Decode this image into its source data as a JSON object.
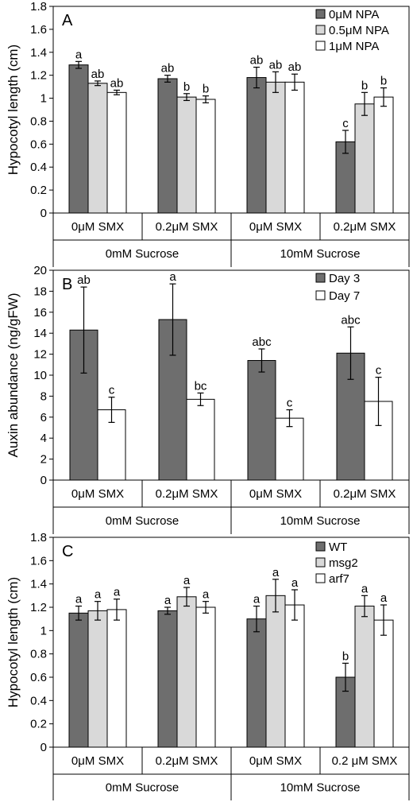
{
  "colors": {
    "dark": "#6e6e6e",
    "light": "#d9d9d9",
    "white": "#ffffff",
    "axis": "#000000"
  },
  "chart_data": [
    {
      "panel": "A",
      "type": "bar",
      "ylabel": "Hypocotyl length (cm)",
      "ylim": [
        0,
        1.8
      ],
      "yticks": [
        "0",
        "0.2",
        "0.4",
        "0.6",
        "0.8",
        "1",
        "1.2",
        "1.4",
        "1.6",
        "1.8"
      ],
      "tickStep": 0.2,
      "categories": [
        "0μM SMX",
        "0.2μM SMX",
        "0μM SMX",
        "0.2μM SMX"
      ],
      "groups": [
        "0mM Sucrose",
        "10mM Sucrose"
      ],
      "legend_position": "top-right",
      "series": [
        {
          "name": "0μM NPA",
          "color": "dark",
          "values": [
            1.29,
            1.17,
            1.18,
            0.62
          ],
          "errors": [
            0.03,
            0.03,
            0.09,
            0.1
          ],
          "letters": [
            "a",
            "ab",
            "ab",
            "c"
          ]
        },
        {
          "name": "0.5μM NPA",
          "color": "light",
          "values": [
            1.13,
            1.01,
            1.14,
            0.95
          ],
          "errors": [
            0.02,
            0.03,
            0.09,
            0.1
          ],
          "letters": [
            "ab",
            "b",
            "ab",
            "b"
          ]
        },
        {
          "name": "1μM NPA",
          "color": "white",
          "values": [
            1.05,
            0.99,
            1.14,
            1.01
          ],
          "errors": [
            0.02,
            0.03,
            0.07,
            0.08
          ],
          "letters": [
            "ab",
            "b",
            "ab",
            "b"
          ]
        }
      ]
    },
    {
      "panel": "B",
      "type": "bar",
      "ylabel": "Auxin abundance (ng/gFW)",
      "ylim": [
        0,
        20
      ],
      "yticks": [
        "0",
        "2",
        "4",
        "6",
        "8",
        "10",
        "12",
        "14",
        "16",
        "18",
        "20"
      ],
      "tickStep": 2,
      "categories": [
        "0μM SMX",
        "0.2μM SMX",
        "0μM SMX",
        "0.2μM SMX"
      ],
      "groups": [
        "0mM Sucrose",
        "10mM Sucrose"
      ],
      "legend_position": "top-right",
      "series": [
        {
          "name": "Day 3",
          "color": "dark",
          "values": [
            14.3,
            15.3,
            11.4,
            12.1
          ],
          "errors": [
            4.1,
            3.4,
            1.1,
            2.5
          ],
          "letters": [
            "ab",
            "a",
            "abc",
            "abc"
          ]
        },
        {
          "name": "Day 7",
          "color": "white",
          "values": [
            6.7,
            7.7,
            5.9,
            7.5
          ],
          "errors": [
            1.2,
            0.6,
            0.8,
            2.3
          ],
          "letters": [
            "c",
            "bc",
            "c",
            "c"
          ]
        }
      ]
    },
    {
      "panel": "C",
      "type": "bar",
      "ylabel": "Hypocotyl length (cm)",
      "ylim": [
        0,
        1.8
      ],
      "yticks": [
        "0",
        "0.2",
        "0.4",
        "0.6",
        "0.8",
        "1",
        "1.2",
        "1.4",
        "1.6",
        "1.8"
      ],
      "tickStep": 0.2,
      "categories": [
        "0μM SMX",
        "0.2μM SMX",
        "0μM SMX",
        "0.2 μM SMX"
      ],
      "groups": [
        "0mM Sucrose",
        "10mM Sucrose"
      ],
      "legend_position": "top-right",
      "series": [
        {
          "name": "WT",
          "color": "dark",
          "values": [
            1.15,
            1.17,
            1.1,
            0.6
          ],
          "errors": [
            0.06,
            0.03,
            0.11,
            0.12
          ],
          "letters": [
            "a",
            "a",
            "a",
            "b"
          ]
        },
        {
          "name": "msg2",
          "color": "light",
          "values": [
            1.17,
            1.29,
            1.3,
            1.21
          ],
          "errors": [
            0.08,
            0.08,
            0.14,
            0.09
          ],
          "letters": [
            "a",
            "a",
            "a",
            "a"
          ]
        },
        {
          "name": "arf7",
          "color": "white",
          "values": [
            1.18,
            1.2,
            1.22,
            1.09
          ],
          "errors": [
            0.09,
            0.05,
            0.13,
            0.13
          ],
          "letters": [
            "a",
            "a",
            "a",
            "a"
          ]
        }
      ]
    }
  ]
}
